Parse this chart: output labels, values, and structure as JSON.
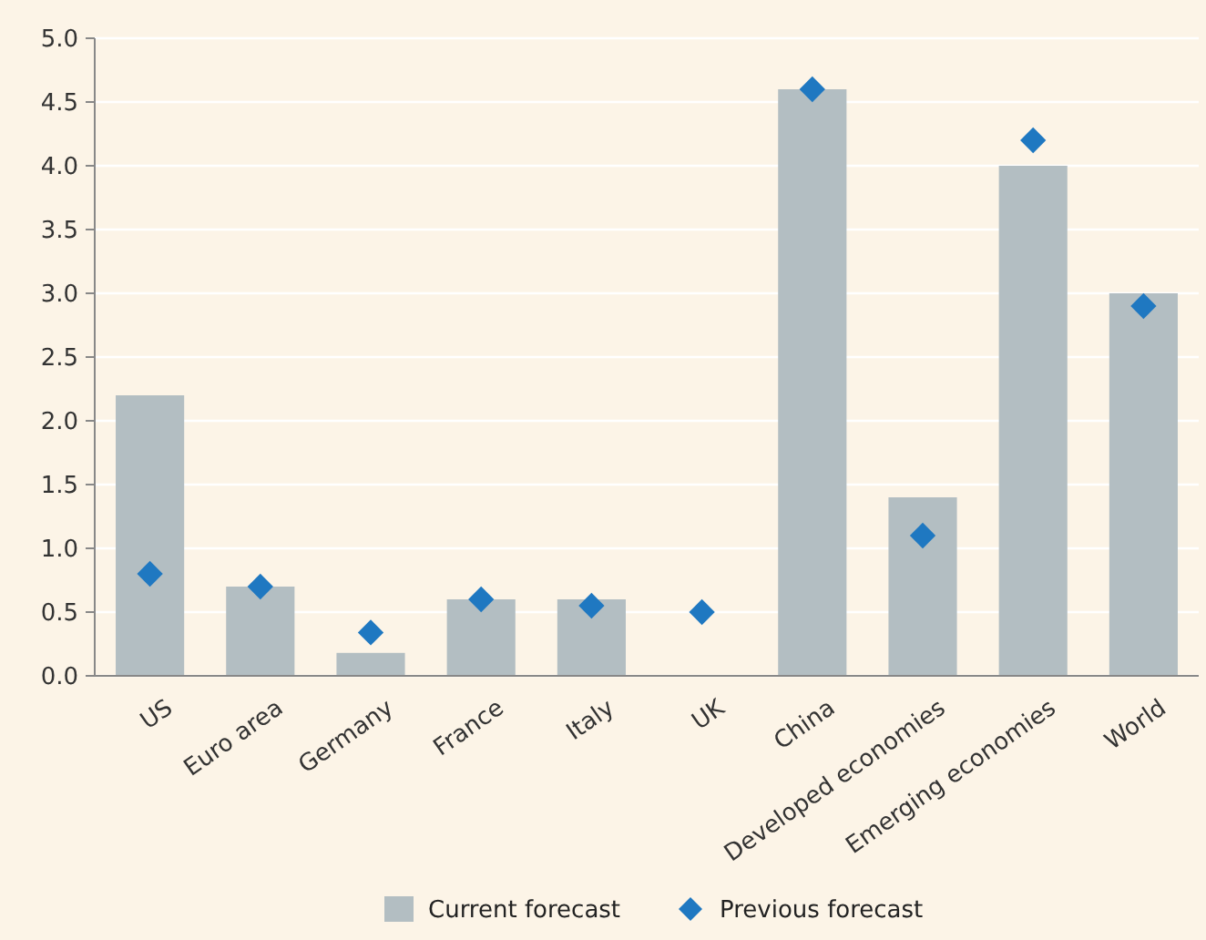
{
  "chart_data": {
    "type": "bar",
    "categories": [
      "US",
      "Euro area",
      "Germany",
      "France",
      "Italy",
      "UK",
      "China",
      "Developed economies",
      "Emerging economies",
      "World"
    ],
    "series": [
      {
        "name": "Current forecast",
        "color": "#b3bec2",
        "values": [
          2.2,
          0.7,
          0.18,
          0.6,
          0.6,
          0,
          4.6,
          1.4,
          4.0,
          3.0
        ]
      },
      {
        "name": "Previous forecast",
        "type": "scatter",
        "color": "#1f78c1",
        "marker": "diamond",
        "values": [
          0.8,
          0.7,
          0.34,
          0.6,
          0.55,
          0.5,
          4.6,
          1.1,
          4.2,
          2.9
        ]
      }
    ],
    "ylim": [
      0,
      5
    ],
    "yticks": [
      {
        "value": 0,
        "label": "0.0"
      },
      0.5,
      {
        "value": 1,
        "label": "1.0"
      },
      1.5,
      {
        "value": 2,
        "label": "2.0"
      },
      2.5,
      {
        "value": 3,
        "label": "3.0"
      },
      3.5,
      {
        "value": 4,
        "label": "4.0"
      },
      4.5,
      {
        "value": 5,
        "label": "5.0"
      }
    ],
    "grid": "y",
    "legend": "bottom"
  }
}
